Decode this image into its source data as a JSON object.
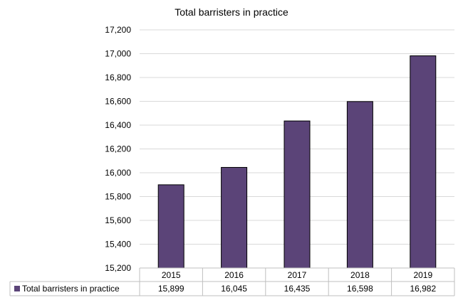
{
  "chart_data": {
    "type": "bar",
    "title": "Total barristers in practice",
    "categories": [
      "2015",
      "2016",
      "2017",
      "2018",
      "2019"
    ],
    "series": [
      {
        "name": "Total barristers in practice",
        "values": [
          15899,
          16045,
          16435,
          16598,
          16982
        ],
        "value_labels": [
          "15,899",
          "16,045",
          "16,435",
          "16,598",
          "16,982"
        ],
        "color": "#5b4478"
      }
    ],
    "ylim": [
      15200,
      17200
    ],
    "yticks": [
      15200,
      15400,
      15600,
      15800,
      16000,
      16200,
      16400,
      16600,
      16800,
      17000,
      17200
    ],
    "ytick_labels": [
      "15,200",
      "15,400",
      "15,600",
      "15,800",
      "16,000",
      "16,200",
      "16,400",
      "16,600",
      "16,800",
      "17,000",
      "17,200"
    ],
    "grid": true,
    "legend": "data-table-below"
  }
}
